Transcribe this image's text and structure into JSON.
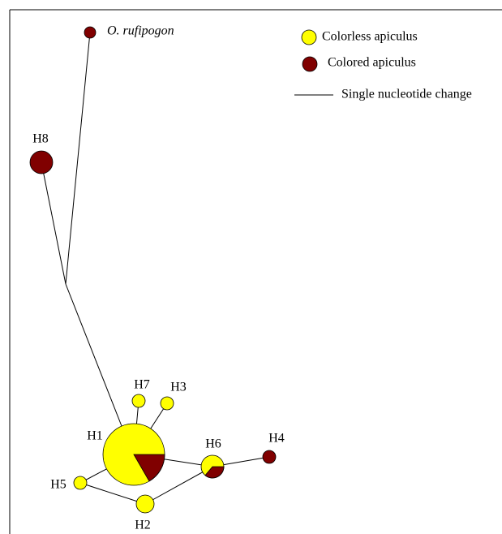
{
  "legend": [
    {
      "label": "Colorless apiculus"
    },
    {
      "label": "Colored apiculus"
    },
    {
      "label": "Single nucleotide change"
    }
  ],
  "nodes": [
    {
      "label": "O. rufipogon"
    },
    {
      "label": "H8"
    },
    {
      "label": "H1"
    },
    {
      "label": "H7"
    },
    {
      "label": "H3"
    },
    {
      "label": "H6"
    },
    {
      "label": "H4"
    },
    {
      "label": "H5"
    },
    {
      "label": "H2"
    }
  ]
}
